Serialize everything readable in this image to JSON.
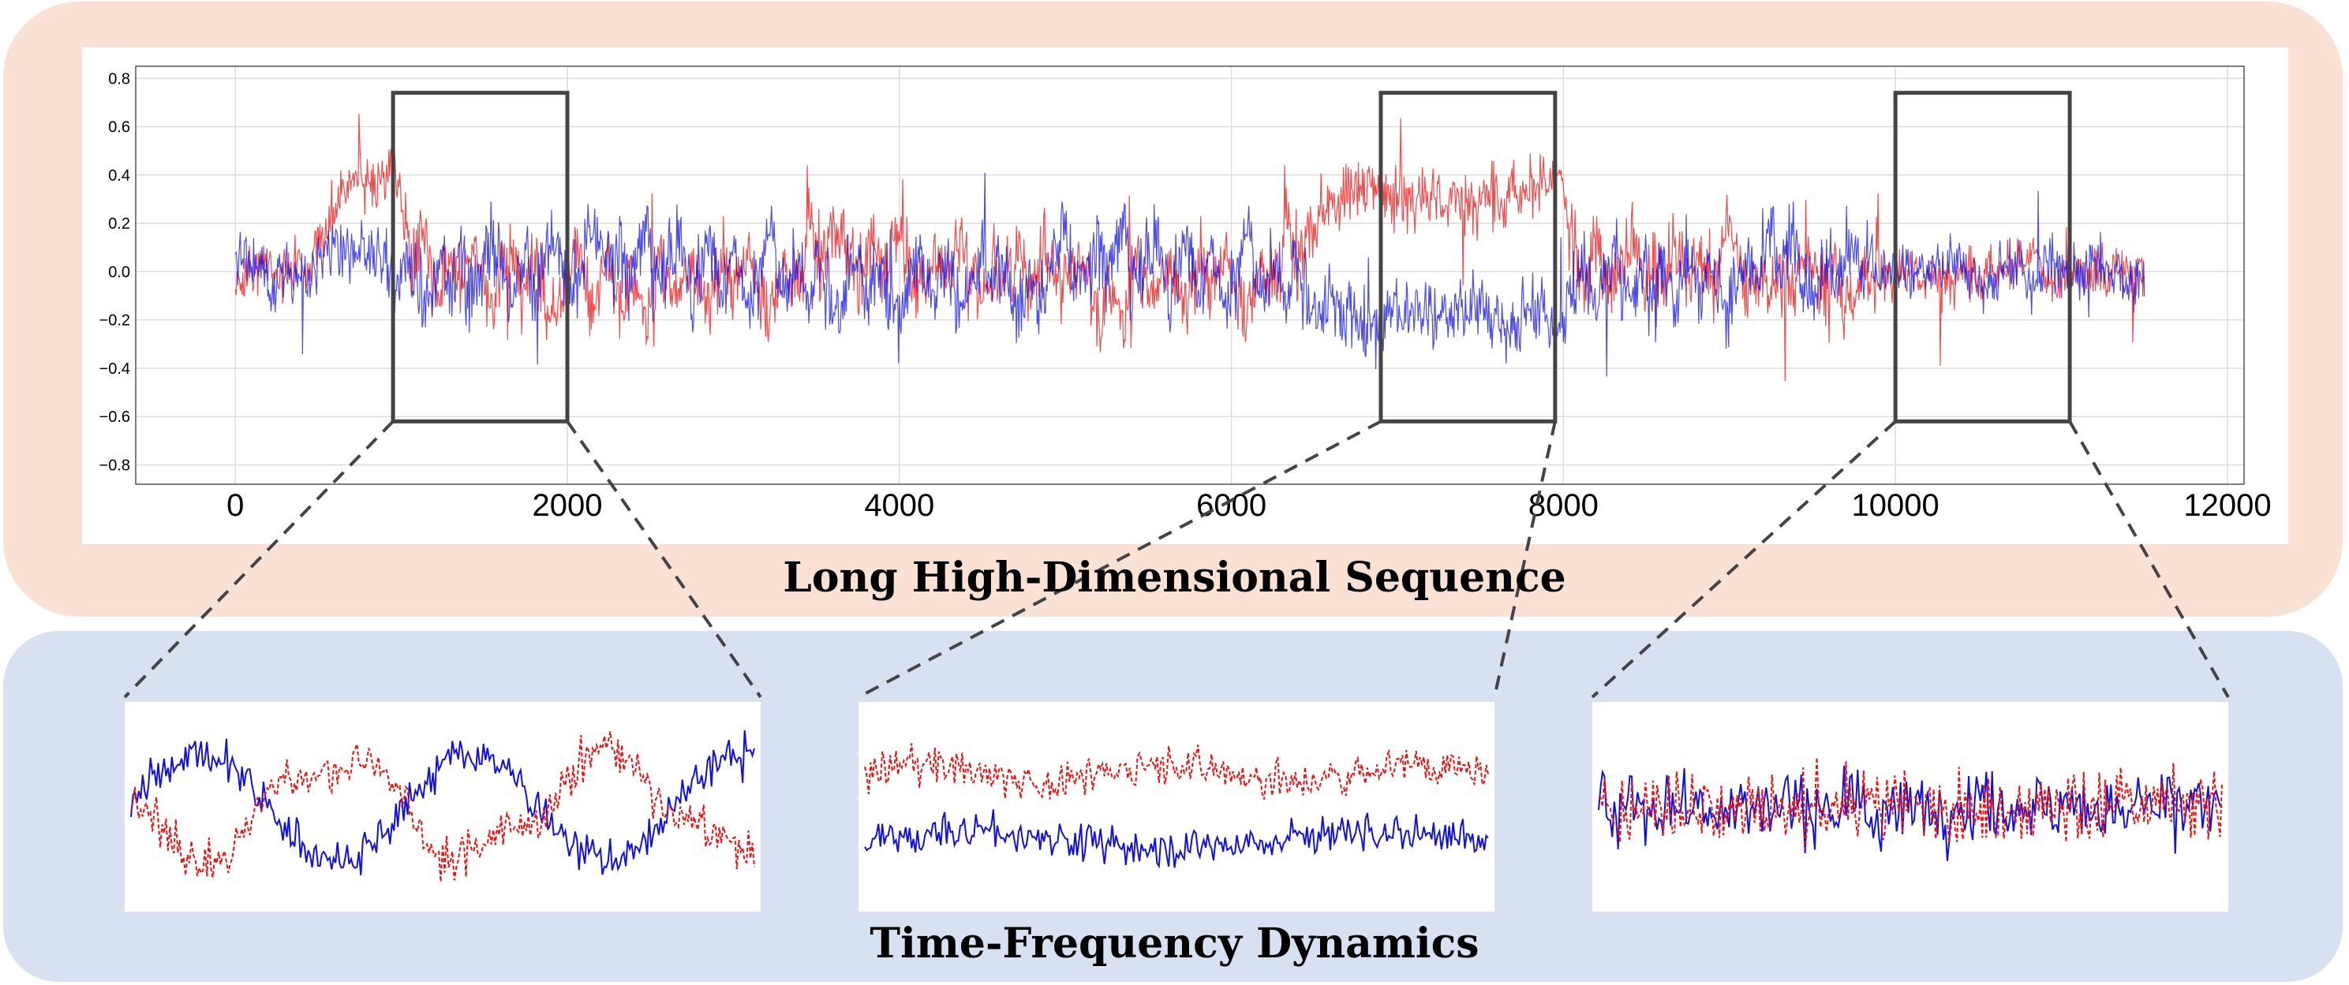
{
  "top_panel": {
    "title": "Long High-Dimensional Sequence"
  },
  "bottom_panel": {
    "title": "Time-Frequency Dynamics"
  },
  "colors": {
    "series_blue": "#1010e0",
    "series_red": "#ee1010",
    "box": "#444444",
    "top_bg": "#f9e1d4",
    "bottom_bg": "#d8e1f1"
  },
  "chart_data": [
    {
      "type": "line",
      "name": "long-sequence",
      "xlim": [
        -600,
        12100
      ],
      "ylim": [
        -0.88,
        0.85
      ],
      "xticks": [
        "0",
        "2000",
        "4000",
        "6000",
        "8000",
        "10000",
        "12000"
      ],
      "xtick_values": [
        0,
        2000,
        4000,
        6000,
        8000,
        10000,
        12000
      ],
      "yticks": [
        "0.8",
        "0.6",
        "0.4",
        "0.2",
        "0.0",
        "−0.2",
        "−0.4",
        "−0.6",
        "−0.8"
      ],
      "ytick_values": [
        0.8,
        0.6,
        0.4,
        0.2,
        0.0,
        -0.2,
        -0.4,
        -0.6,
        -0.8
      ],
      "grid": true,
      "n_points": 11500,
      "series": [
        {
          "name": "blue",
          "color": "#1010e0",
          "style": "solid"
        },
        {
          "name": "red",
          "color": "#ee1010",
          "style": "solid"
        }
      ],
      "segments": [
        {
          "x_start": 0,
          "x_end": 450,
          "blue_mean": 0.0,
          "red_mean": 0.0,
          "noise": 0.12
        },
        {
          "x_start": 450,
          "x_end": 950,
          "blue_mean": 0.05,
          "red_mean": 0.38,
          "noise": 0.13
        },
        {
          "x_start": 950,
          "x_end": 6500,
          "blue_mean": 0.0,
          "red_mean": 0.0,
          "noise": 0.16,
          "switching": true
        },
        {
          "x_start": 6500,
          "x_end": 8000,
          "blue_mean": -0.18,
          "red_mean": 0.32,
          "noise": 0.14
        },
        {
          "x_start": 8000,
          "x_end": 9900,
          "blue_mean": 0.0,
          "red_mean": 0.0,
          "noise": 0.16,
          "switching": true
        },
        {
          "x_start": 9900,
          "x_end": 11500,
          "blue_mean": 0.0,
          "red_mean": 0.0,
          "noise": 0.11
        }
      ],
      "highlight_windows": [
        {
          "x_start": 950,
          "x_end": 2000,
          "y_low": -0.62,
          "y_high": 0.74
        },
        {
          "x_start": 6900,
          "x_end": 7950,
          "y_low": -0.62,
          "y_high": 0.74
        },
        {
          "x_start": 10000,
          "x_end": 11050,
          "y_low": -0.62,
          "y_high": 0.74
        }
      ]
    },
    {
      "type": "line",
      "name": "zoom-window-1",
      "pattern": "anti-phase oscillation",
      "series": [
        {
          "name": "blue",
          "color": "#1010e0",
          "style": "solid",
          "mean": 0.0
        },
        {
          "name": "red",
          "color": "#ee1010",
          "style": "dashed",
          "mean": 0.0
        }
      ]
    },
    {
      "type": "line",
      "name": "zoom-window-2",
      "pattern": "separated levels",
      "series": [
        {
          "name": "blue",
          "color": "#1010e0",
          "style": "solid",
          "mean": -0.25
        },
        {
          "name": "red",
          "color": "#ee1010",
          "style": "dashed",
          "mean": 0.3
        }
      ]
    },
    {
      "type": "line",
      "name": "zoom-window-3",
      "pattern": "high-frequency overlap",
      "series": [
        {
          "name": "blue",
          "color": "#1010e0",
          "style": "solid",
          "mean": 0.0
        },
        {
          "name": "red",
          "color": "#ee1010",
          "style": "dashed",
          "mean": 0.0
        }
      ]
    }
  ]
}
